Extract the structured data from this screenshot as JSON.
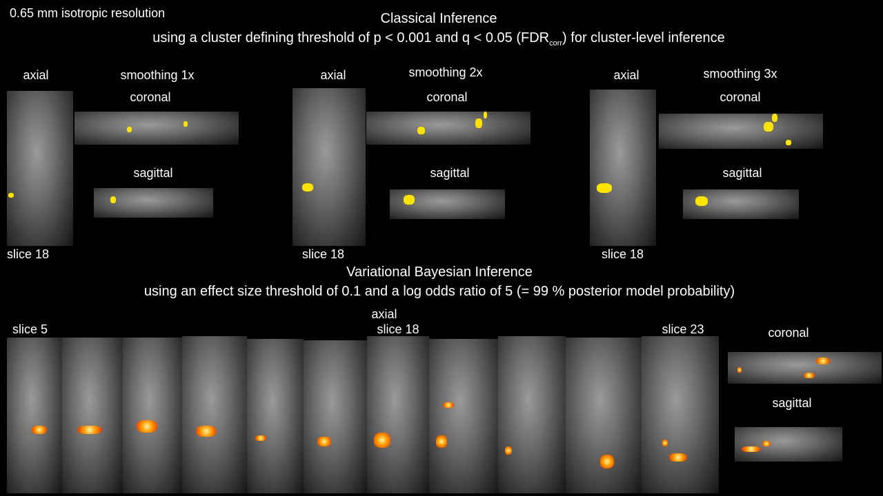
{
  "header": {
    "resolution": "0.65 mm isotropic resolution"
  },
  "classical": {
    "title": "Classical Inference",
    "subtitle": {
      "before": "using a cluster defining threshold of p < 0.001 and q < 0.05 (FDR",
      "subscript": "corr",
      "after": ") for cluster-level inference"
    },
    "panels": [
      {
        "axial": "axial",
        "smoothing": "smoothing 1x",
        "coronal": "coronal",
        "sagittal": "sagittal",
        "slice": "slice 18"
      },
      {
        "axial": "axial",
        "smoothing": "smoothing 2x",
        "coronal": "coronal",
        "sagittal": "sagittal",
        "slice": "slice 18"
      },
      {
        "axial": "axial",
        "smoothing": "smoothing 3x",
        "coronal": "coronal",
        "sagittal": "sagittal",
        "slice": "slice 18"
      }
    ]
  },
  "bayesian": {
    "title": "Variational Bayesian Inference",
    "subtitle": "using an effect size threshold of 0.1 and a log odds ratio of 5 (= 99 % posterior model probability)",
    "labels": {
      "first_slice": "slice 5",
      "axial": "axial",
      "middle_slice": "slice 18",
      "last_slice": "slice 23",
      "coronal": "coronal",
      "sagittal": "sagittal"
    }
  }
}
